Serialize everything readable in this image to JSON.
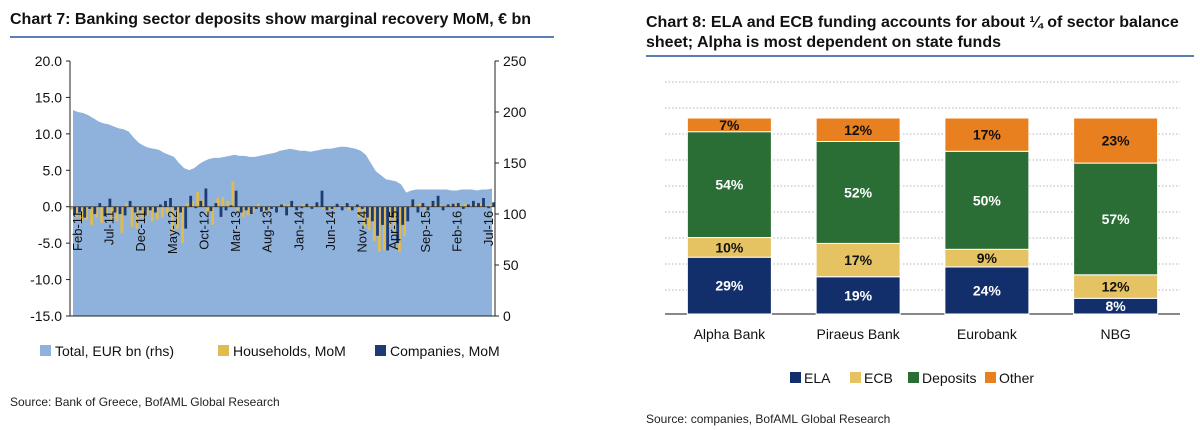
{
  "chart7": {
    "title": "Chart 7: Banking sector deposits show marginal recovery MoM, € bn",
    "source": "Source: Bank of Greece, BofAML Global Research",
    "chart_data": {
      "type": "bar",
      "x_tick_labels": [
        "Feb-11",
        "Jul-11",
        "Dec-11",
        "May-12",
        "Oct-12",
        "Mar-13",
        "Aug-13",
        "Jan-14",
        "Jun-14",
        "Nov-14",
        "Apr-15",
        "Sep-15",
        "Feb-16",
        "Jul-16"
      ],
      "y_left_ticks": [
        "20.0",
        "15.0",
        "10.0",
        "5.0",
        "0.0",
        "-5.0",
        "-10.0",
        "-15.0"
      ],
      "y_right_ticks": [
        "250",
        "200",
        "150",
        "100",
        "50",
        "0"
      ],
      "ylim_left": [
        -15,
        20
      ],
      "ylim_right": [
        0,
        250
      ],
      "legend_position": "bottom",
      "series": [
        {
          "name": "Total, EUR bn (rhs)",
          "type": "area",
          "axis": "right",
          "color": "#8fb2dc",
          "values": [
            202,
            200,
            199,
            197,
            194,
            191,
            189,
            188,
            186,
            184,
            183,
            181,
            175,
            170,
            167,
            165,
            164,
            163,
            160,
            158,
            156,
            150,
            145,
            143,
            145,
            149,
            152,
            154,
            155,
            155,
            156,
            157,
            158,
            157,
            157,
            156,
            156,
            157,
            158,
            159,
            160,
            162,
            163,
            164,
            163,
            162,
            162,
            161,
            162,
            163,
            164,
            164,
            165,
            166,
            166,
            165,
            164,
            162,
            158,
            150,
            142,
            138,
            134,
            133,
            132,
            129,
            121,
            123,
            124,
            124,
            124,
            124,
            124,
            124,
            124,
            123,
            123,
            124,
            124,
            124,
            123,
            124,
            124,
            125
          ]
        },
        {
          "name": "Households, MoM",
          "type": "bar",
          "axis": "left",
          "color": "#e0bb4f",
          "values": [
            -0.4,
            -1.5,
            -2.0,
            -1.8,
            -2.5,
            -1.5,
            -2.2,
            -1.2,
            -2.0,
            -2.0,
            -3.6,
            0.5,
            -2.8,
            -3.0,
            -1.5,
            -1.2,
            -2.0,
            -1.8,
            -1.5,
            -1.0,
            -4.0,
            -3.0,
            -5.0,
            0.5,
            0.8,
            2.0,
            1.0,
            -1.0,
            -2.5,
            1.2,
            1.3,
            0.8,
            3.5,
            -0.5,
            -1.4,
            -1.2,
            -0.8,
            0.4,
            -0.7,
            -0.3,
            -0.2,
            -0.1,
            0.4,
            0.3,
            0.2,
            -0.1,
            0.3,
            0.2,
            0.1,
            0.2,
            -0.3,
            -0.4,
            -0.3,
            -0.2,
            0.2,
            -0.5,
            0.2,
            -1.5,
            -2.8,
            -3.2,
            -4.7,
            -6.2,
            -6.0,
            -2.8,
            -3.8,
            -6.2,
            -4.0,
            0.1,
            0.3,
            0.4,
            -0.4,
            0.2,
            0.4,
            0.3,
            0.1,
            0.2,
            0.4,
            0.3,
            0.4,
            0.2,
            0.3,
            0.5,
            0.2,
            0.3
          ]
        },
        {
          "name": "Companies, MoM",
          "type": "bar",
          "axis": "left",
          "color": "#1f3b73",
          "values": [
            -1.0,
            -0.8,
            -1.5,
            -0.3,
            -1.0,
            0.5,
            -1.3,
            1.1,
            -0.8,
            -1.0,
            -1.2,
            0.8,
            -0.8,
            -0.5,
            -1.2,
            -0.5,
            -0.8,
            0.3,
            0.8,
            1.2,
            -0.5,
            -0.8,
            -3.0,
            1.5,
            -0.2,
            0.8,
            2.5,
            -0.6,
            0.5,
            -1.4,
            -0.5,
            0.2,
            2.2,
            -0.8,
            -0.5,
            -1.0,
            -0.3,
            -0.7,
            -0.5,
            -0.3,
            -0.8,
            0.3,
            -1.2,
            0.8,
            -0.5,
            -0.2,
            0.4,
            -0.3,
            0.6,
            2.2,
            -0.5,
            -0.3,
            0.4,
            -0.5,
            0.5,
            -0.5,
            0.3,
            -0.3,
            -1.5,
            -2.0,
            -4.0,
            -2.5,
            -6.0,
            -1.5,
            -5.0,
            -2.5,
            -2.0,
            1.0,
            -0.8,
            0.5,
            -0.5,
            0.8,
            1.5,
            -0.5,
            0.3,
            0.4,
            0.5,
            -0.3,
            0.3,
            0.8,
            0.5,
            1.2,
            -0.2,
            0.6
          ]
        }
      ]
    }
  },
  "chart8": {
    "title_line1": "Chart 8: ELA and ECB funding accounts for about ¼ of sector balance",
    "title_line2": "sheet; Alpha is most dependent on state funds",
    "source": "Source: companies, BofAML Global Research",
    "chart_data": {
      "type": "bar",
      "stacked": true,
      "percent": true,
      "categories": [
        "Alpha Bank",
        "Piraeus Bank",
        "Eurobank",
        "NBG"
      ],
      "ylim": [
        0,
        100
      ],
      "legend_position": "bottom",
      "series": [
        {
          "name": "ELA",
          "color": "#132f6b",
          "values": [
            29,
            19,
            24,
            8
          ],
          "labels": [
            "29%",
            "19%",
            "24%",
            "8%"
          ]
        },
        {
          "name": "ECB",
          "color": "#e5c362",
          "values": [
            10,
            17,
            9,
            12
          ],
          "labels": [
            "10%",
            "17%",
            "9%",
            "12%"
          ]
        },
        {
          "name": "Deposits",
          "color": "#2a6e36",
          "values": [
            54,
            52,
            50,
            57
          ],
          "labels": [
            "54%",
            "52%",
            "50%",
            "57%"
          ]
        },
        {
          "name": "Other",
          "color": "#e9801f",
          "values": [
            7,
            12,
            17,
            23
          ],
          "labels": [
            "7%",
            "12%",
            "17%",
            "23%"
          ]
        }
      ]
    }
  }
}
